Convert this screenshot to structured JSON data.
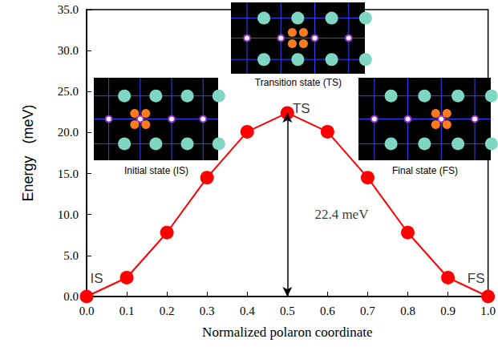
{
  "chart_data": {
    "type": "line",
    "x_label": "Normalized polaron coordinate",
    "y_label": "Energy   (meV)",
    "x": [
      0,
      0.1,
      0.2,
      0.3,
      0.4,
      0.5,
      0.6,
      0.7,
      0.8,
      0.9,
      1
    ],
    "values": [
      0,
      2.3,
      7.8,
      14.5,
      20.1,
      22.4,
      20.1,
      14.5,
      7.8,
      2.3,
      0
    ],
    "color": "#ff0000",
    "marker": "circle",
    "line_style": "solid",
    "xlim": [
      0,
      1
    ],
    "xticks": [
      {
        "value": 0,
        "label": "0.0"
      },
      0.1,
      0.2,
      0.3,
      0.4,
      0.5,
      0.6,
      0.7,
      0.8,
      0.9,
      {
        "value": 1,
        "label": "1.0"
      }
    ],
    "ylim": [
      0,
      35
    ],
    "yticks": [
      {
        "value": 0,
        "label": "0.0"
      },
      {
        "value": 5,
        "label": "5.0"
      },
      {
        "value": 10,
        "label": "10.0"
      },
      {
        "value": 15,
        "label": "15.0"
      },
      {
        "value": 20,
        "label": "20.0"
      },
      {
        "value": 25,
        "label": "25.0"
      },
      {
        "value": 30,
        "label": "30.0"
      },
      {
        "value": 35,
        "label": "35.0"
      }
    ],
    "grid": false,
    "barrier": {
      "x": 0.5,
      "from": 0,
      "to": 22.4
    },
    "annotations": [
      {
        "text": "IS",
        "x": 0.025,
        "y": 2.2
      },
      {
        "text": "TS",
        "x": 0.535,
        "y": 22.9
      },
      {
        "text": "FS",
        "x": 0.97,
        "y": 2.2
      },
      {
        "text": "22.4 meV",
        "x": 0.635,
        "y": 10
      }
    ],
    "insets": [
      "Initial state (IS)",
      "Transition state (TS)",
      "Final state (FS)"
    ]
  }
}
